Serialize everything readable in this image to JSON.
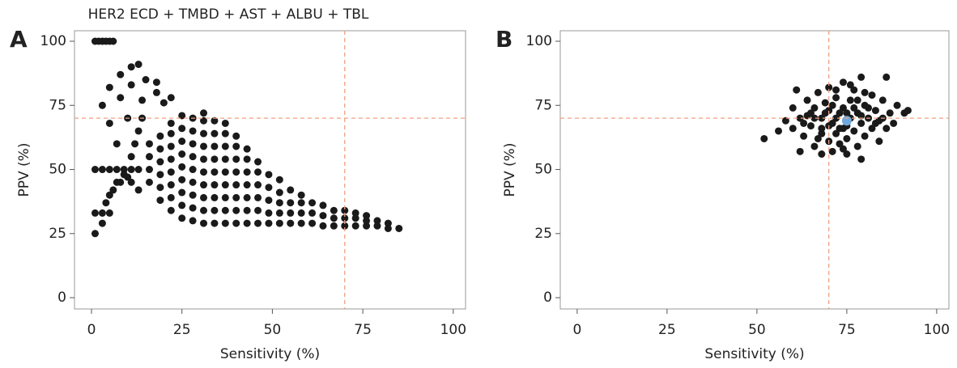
{
  "chart_data": [
    {
      "type": "scatter",
      "panel_label": "A",
      "title": "HER2 ECD + TMBD + AST + ALBU + TBL",
      "x_label": "Sensitivity (%)",
      "y_label": "PPV (%)",
      "xlim": [
        -4.7,
        103.4
      ],
      "ylim": [
        -4.4,
        104.1
      ],
      "xticks": [
        0,
        25,
        50,
        75,
        100
      ],
      "yticks": [
        0,
        25,
        50,
        75,
        100
      ],
      "ref_x": 70,
      "ref_y": 70,
      "ref_color": "#f0a080",
      "series": [
        {
          "color": "#1a1a1a",
          "x": [
            1,
            2,
            3,
            4,
            5,
            6,
            3,
            5,
            8,
            11,
            13,
            5,
            8,
            11,
            15,
            18,
            7,
            10,
            14,
            18,
            22,
            1,
            3,
            5,
            7,
            9,
            11,
            13,
            1,
            3,
            5,
            1,
            3,
            4,
            6,
            8,
            10,
            5,
            7,
            9,
            11,
            13,
            11,
            12,
            13,
            14,
            20,
            16,
            16,
            16,
            16,
            19,
            19,
            19,
            19,
            19,
            19,
            22,
            22,
            22,
            22,
            22,
            22,
            22,
            22,
            25,
            25,
            25,
            25,
            25,
            25,
            25,
            25,
            25,
            28,
            28,
            28,
            28,
            28,
            28,
            28,
            28,
            28,
            31,
            31,
            31,
            31,
            31,
            31,
            31,
            31,
            31,
            31,
            34,
            34,
            34,
            34,
            34,
            34,
            34,
            34,
            34,
            37,
            37,
            37,
            37,
            37,
            37,
            37,
            37,
            37,
            40,
            40,
            40,
            40,
            40,
            40,
            40,
            40,
            43,
            43,
            43,
            43,
            43,
            43,
            43,
            46,
            46,
            46,
            46,
            46,
            46,
            49,
            49,
            49,
            49,
            49,
            52,
            52,
            52,
            52,
            52,
            55,
            55,
            55,
            55,
            58,
            58,
            58,
            58,
            61,
            61,
            61,
            64,
            64,
            64,
            67,
            67,
            67,
            70,
            70,
            70,
            73,
            73,
            73,
            76,
            76,
            76,
            79,
            79,
            82,
            82,
            85
          ],
          "values": [
            100,
            100,
            100,
            100,
            100,
            100,
            75,
            82,
            87,
            90,
            91,
            68,
            78,
            83,
            85,
            84,
            60,
            70,
            77,
            80,
            78,
            50,
            50,
            50,
            50,
            50,
            50,
            50,
            33,
            33,
            33,
            25,
            29,
            37,
            42,
            45,
            47,
            40,
            45,
            48,
            45,
            42,
            55,
            60,
            65,
            70,
            76,
            45,
            50,
            55,
            60,
            38,
            43,
            48,
            53,
            58,
            63,
            34,
            39,
            44,
            49,
            54,
            59,
            64,
            68,
            31,
            36,
            41,
            46,
            51,
            56,
            61,
            66,
            71,
            30,
            35,
            40,
            45,
            50,
            55,
            60,
            65,
            70,
            29,
            34,
            39,
            44,
            49,
            54,
            59,
            64,
            69,
            72,
            29,
            34,
            39,
            44,
            49,
            54,
            59,
            64,
            69,
            29,
            34,
            39,
            44,
            49,
            54,
            59,
            64,
            68,
            29,
            34,
            39,
            44,
            49,
            54,
            59,
            63,
            29,
            34,
            39,
            44,
            49,
            54,
            58,
            29,
            34,
            39,
            44,
            49,
            53,
            29,
            33,
            38,
            43,
            48,
            29,
            33,
            37,
            41,
            46,
            29,
            33,
            37,
            42,
            29,
            33,
            37,
            40,
            29,
            33,
            37,
            28,
            32,
            36,
            28,
            31,
            34,
            28,
            31,
            34,
            28,
            31,
            33,
            28,
            30,
            32,
            28,
            30,
            27,
            29,
            27
          ]
        }
      ]
    },
    {
      "type": "scatter",
      "panel_label": "B",
      "x_label": "Sensitivity (%)",
      "y_label": "PPV (%)",
      "xlim": [
        -4.7,
        103.4
      ],
      "ylim": [
        -4.4,
        104.1
      ],
      "xticks": [
        0,
        25,
        50,
        75,
        100
      ],
      "yticks": [
        0,
        25,
        50,
        75,
        100
      ],
      "ref_x": 70,
      "ref_y": 70,
      "ref_color": "#f0a080",
      "series": [
        {
          "color": "#1a1a1a",
          "x": [
            52,
            56,
            58,
            60,
            61,
            62,
            63,
            64,
            64,
            65,
            66,
            66,
            67,
            68,
            68,
            68,
            69,
            70,
            70,
            70,
            70,
            71,
            72,
            72,
            72,
            73,
            74,
            74,
            74,
            75,
            75,
            76,
            76,
            77,
            77,
            78,
            78,
            79,
            79,
            79,
            80,
            80,
            81,
            82,
            82,
            83,
            84,
            84,
            85,
            86,
            86,
            87,
            88,
            89,
            91,
            92,
            66,
            68,
            71,
            73,
            75,
            77,
            79,
            81,
            83,
            69,
            71,
            73,
            75,
            67,
            63,
            65,
            60,
            62,
            85,
            80,
            76,
            72,
            78,
            74
          ],
          "values": [
            62,
            65,
            69,
            74,
            81,
            57,
            63,
            71,
            77,
            67,
            59,
            74,
            80,
            56,
            64,
            70,
            76,
            61,
            67,
            73,
            82,
            57,
            64,
            70,
            78,
            60,
            66,
            74,
            84,
            56,
            62,
            70,
            77,
            65,
            81,
            59,
            72,
            68,
            54,
            86,
            75,
            63,
            70,
            79,
            66,
            73,
            61,
            69,
            77,
            86,
            66,
            72,
            68,
            75,
            72,
            73,
            70,
            66,
            68,
            72,
            67,
            74,
            71,
            74,
            68,
            72,
            75,
            66,
            72,
            62,
            68,
            72,
            66,
            70,
            70,
            80,
            83,
            81,
            77,
            58
          ]
        },
        {
          "color": "#6fa8dc",
          "x": [
            75
          ],
          "values": [
            69
          ]
        }
      ]
    }
  ]
}
